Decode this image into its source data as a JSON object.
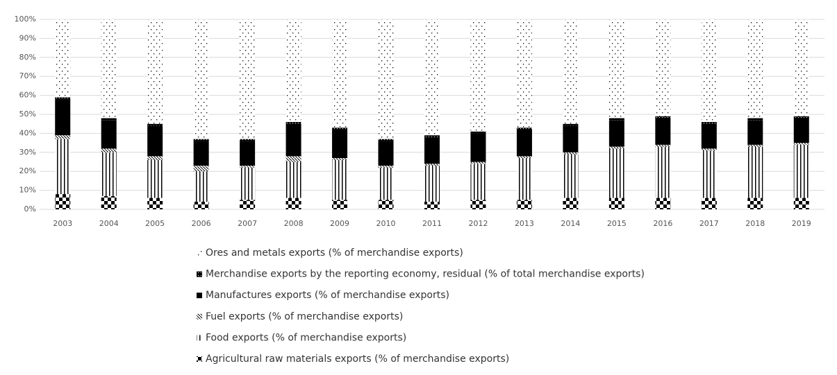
{
  "chart_data": {
    "type": "stacked-bar",
    "categories": [
      "2003",
      "2004",
      "2005",
      "2006",
      "2007",
      "2008",
      "2009",
      "2010",
      "2011",
      "2012",
      "2013",
      "2014",
      "2015",
      "2016",
      "2017",
      "2018",
      "2019"
    ],
    "series": [
      {
        "name": "Agricultural raw materials exports (% of merchandise exports)",
        "color": "#000000",
        "pattern": "checker",
        "values": [
          8,
          7,
          6,
          4,
          5,
          6,
          5,
          5,
          4,
          5,
          5,
          6,
          6,
          6,
          6,
          6,
          6
        ]
      },
      {
        "name": "Food exports (% of merchandise exports)",
        "color": "#000000",
        "pattern": "vertical-lines",
        "values": [
          29,
          23,
          20,
          16,
          17,
          19,
          21,
          17,
          19,
          19,
          22,
          23,
          26,
          27,
          25,
          27,
          28
        ]
      },
      {
        "name": "Fuel exports (% of merchandise exports)",
        "color": "#000000",
        "pattern": "diagonal",
        "values": [
          2,
          2,
          2,
          3,
          1,
          3,
          1,
          1,
          1,
          1,
          1,
          1,
          1,
          1,
          1,
          1,
          1
        ]
      },
      {
        "name": "Manufactures exports (% of merchandise exports)",
        "color": "#000000",
        "pattern": "solid",
        "values": [
          19,
          15,
          16,
          13,
          13,
          17,
          15,
          13,
          14,
          15,
          14,
          14,
          14,
          14,
          13,
          13,
          13
        ]
      },
      {
        "name": "Merchandise exports by the reporting economy, residual (% of total merchandise exports)",
        "color": "#000000",
        "pattern": "dense-dots",
        "values": [
          1,
          1,
          1,
          1,
          1,
          1,
          1,
          1,
          1,
          1,
          1,
          1,
          1,
          1,
          1,
          1,
          1
        ]
      },
      {
        "name": "Ores and metals exports (% of merchandise exports)",
        "color": "#000000",
        "pattern": "sparse-dots",
        "values": [
          41,
          52,
          55,
          63,
          63,
          54,
          57,
          63,
          61,
          59,
          57,
          55,
          52,
          51,
          54,
          52,
          51
        ]
      }
    ],
    "ylim": [
      0,
      100
    ],
    "yticks": [
      {
        "value": 0,
        "label": "0%"
      },
      {
        "value": 10,
        "label": "10%"
      },
      {
        "value": 20,
        "label": "20%"
      },
      {
        "value": 30,
        "label": "30%"
      },
      {
        "value": 40,
        "label": "40%"
      },
      {
        "value": 50,
        "label": "50%"
      },
      {
        "value": 60,
        "label": "60%"
      },
      {
        "value": 70,
        "label": "70%"
      },
      {
        "value": 80,
        "label": "80%"
      },
      {
        "value": 90,
        "label": "90%"
      },
      {
        "value": 100,
        "label": "100%"
      }
    ],
    "grid": true,
    "legend": "bottom"
  }
}
